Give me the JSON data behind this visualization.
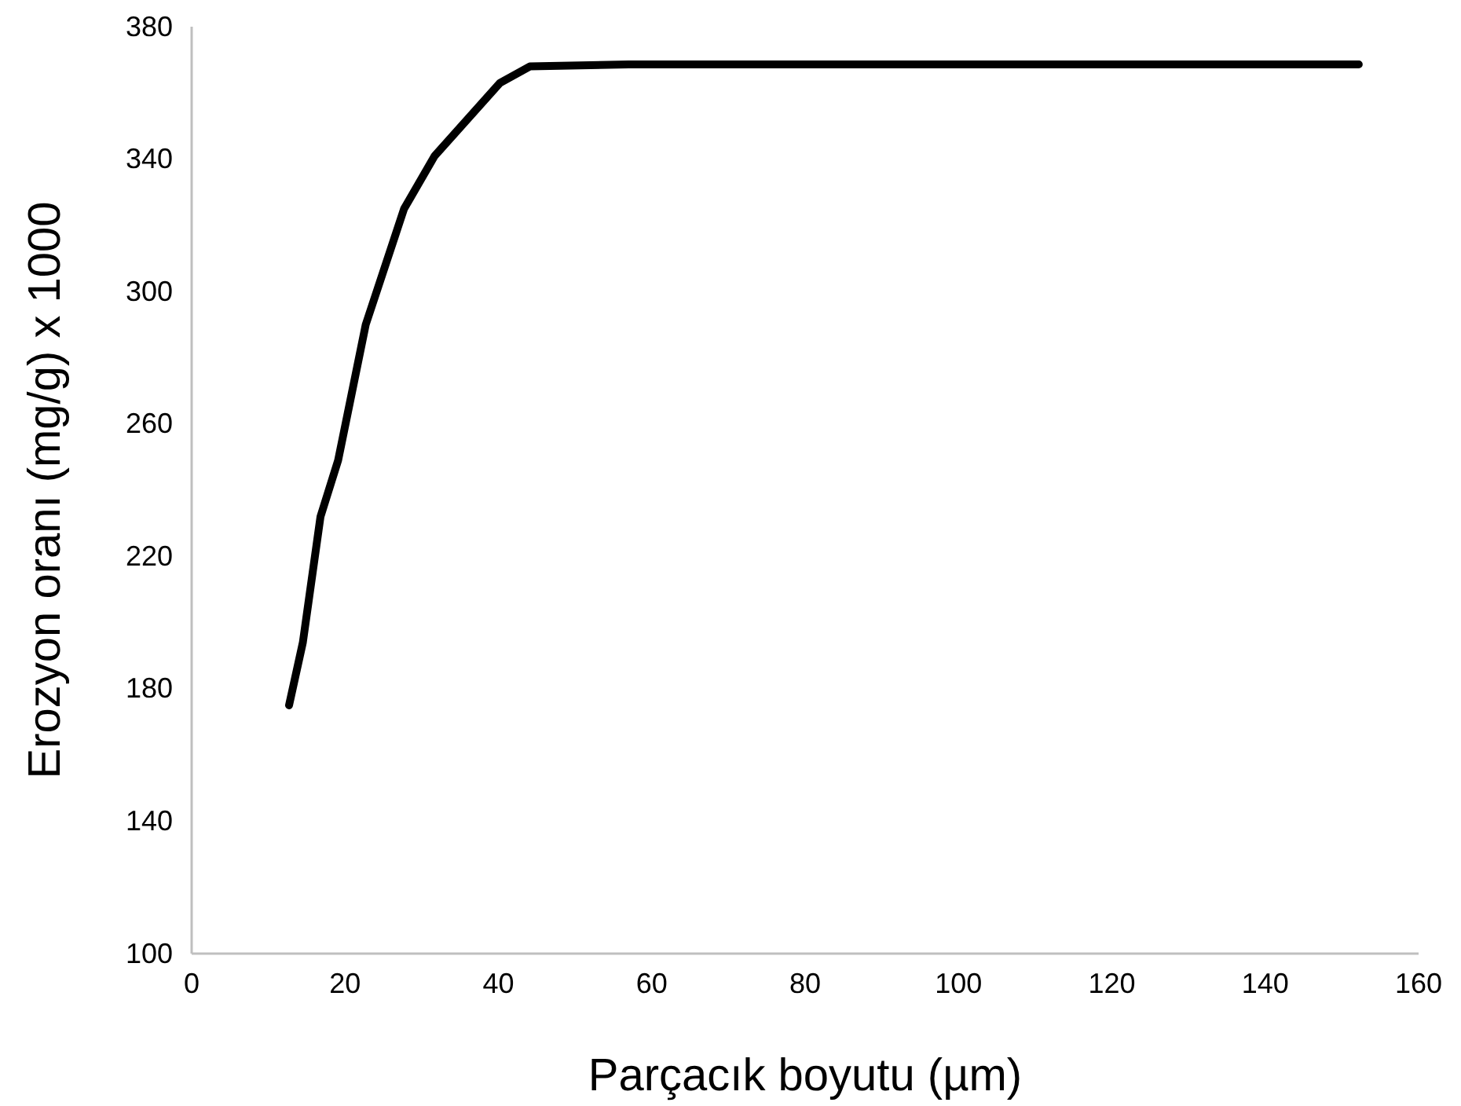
{
  "chart_data": {
    "type": "line",
    "xlabel": "Parçacık boyutu (µm)",
    "ylabel": "Erozyon oranı (mg/g) x 1000",
    "x": [
      12.7,
      14.5,
      16.8,
      19.1,
      22.7,
      27.7,
      31.7,
      40.2,
      44.1,
      57,
      152.2
    ],
    "series": [
      {
        "color": "#000000",
        "values": [
          175,
          194,
          232,
          249,
          290,
          325,
          341,
          363,
          368,
          368.6,
          368.6
        ]
      }
    ],
    "xlim": [
      0,
      160
    ],
    "xticks": [
      0,
      20,
      40,
      60,
      80,
      100,
      120,
      140,
      160
    ],
    "ylim": [
      100,
      380
    ],
    "yticks": [
      100,
      140,
      180,
      220,
      260,
      300,
      340,
      380
    ],
    "grid": false,
    "marker": "none",
    "line_style": "solid"
  }
}
